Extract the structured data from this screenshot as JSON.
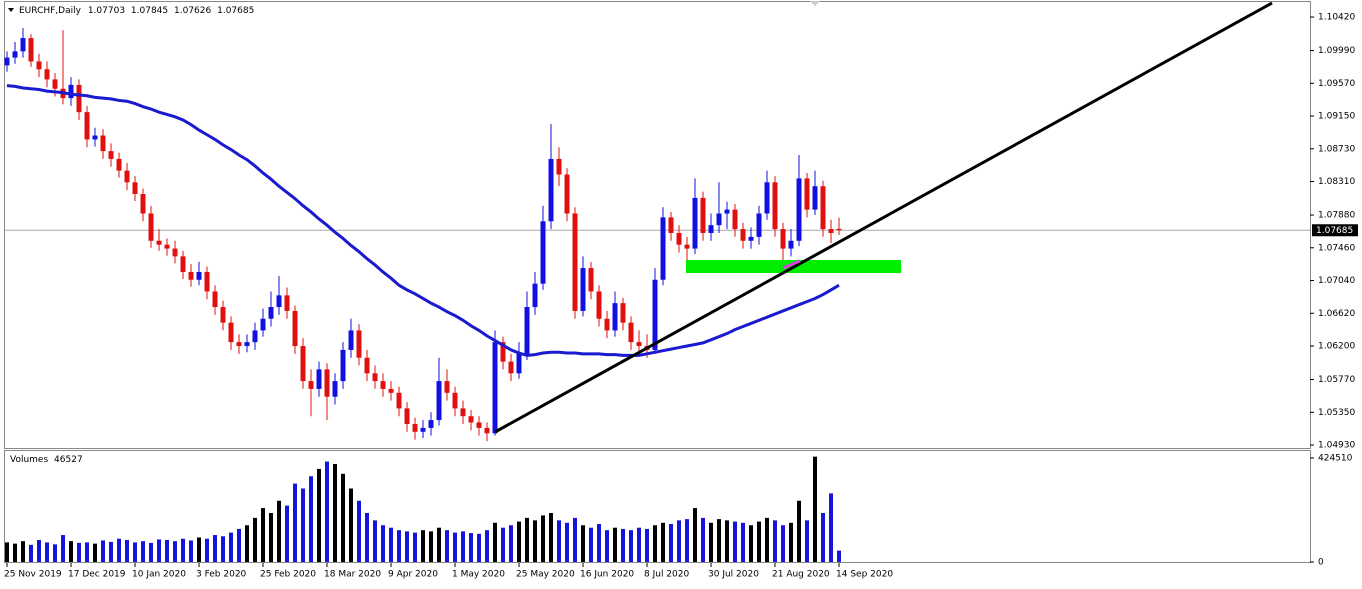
{
  "chart_data": {
    "type": "candlestick",
    "title": "EURCHF,Daily",
    "categories": [
      "25 Nov 2019",
      null,
      null,
      null,
      null,
      null,
      null,
      null,
      "17 Dec 2019",
      null,
      null,
      null,
      null,
      null,
      null,
      null,
      "10 Jan 2020",
      null,
      null,
      null,
      null,
      null,
      null,
      null,
      "3 Feb 2020",
      null,
      null,
      null,
      null,
      null,
      null,
      null,
      "25 Feb 2020",
      null,
      null,
      null,
      null,
      null,
      null,
      null,
      "18 Mar 2020",
      null,
      null,
      null,
      null,
      null,
      null,
      null,
      "9 Apr 2020",
      null,
      null,
      null,
      null,
      null,
      null,
      null,
      "1 May 2020",
      null,
      null,
      null,
      null,
      null,
      null,
      null,
      "25 May 2020",
      null,
      null,
      null,
      null,
      null,
      null,
      null,
      "16 Jun 2020",
      null,
      null,
      null,
      null,
      null,
      null,
      null,
      "8 Jul 2020",
      null,
      null,
      null,
      null,
      null,
      null,
      null,
      "30 Jul 2020",
      null,
      null,
      null,
      null,
      null,
      null,
      null,
      "21 Aug 2020",
      null,
      null,
      null,
      null,
      null,
      null,
      null,
      "14 Sep 2020"
    ],
    "open": [
      1.098,
      1.099,
      1.0998,
      1.1015,
      1.0985,
      1.0975,
      1.0962,
      1.095,
      1.0938,
      1.0955,
      1.092,
      1.0885,
      1.089,
      1.087,
      1.086,
      1.0845,
      1.083,
      1.0815,
      1.079,
      1.0755,
      1.075,
      1.0745,
      1.0735,
      1.0715,
      1.0705,
      1.0715,
      1.069,
      1.067,
      1.065,
      1.0625,
      1.062,
      1.0625,
      1.064,
      1.0655,
      1.067,
      1.0685,
      1.0665,
      1.062,
      1.0575,
      1.0565,
      1.059,
      1.0555,
      1.0575,
      1.0615,
      1.064,
      1.0605,
      1.0585,
      1.0575,
      1.0565,
      1.056,
      1.054,
      1.052,
      1.051,
      1.0515,
      1.0525,
      1.0575,
      1.056,
      1.054,
      1.053,
      1.0522,
      1.0515,
      1.0508,
      1.0625,
      1.06,
      1.0585,
      1.061,
      1.067,
      1.07,
      1.078,
      1.086,
      1.084,
      1.079,
      1.0665,
      1.072,
      1.069,
      1.0655,
      1.064,
      1.0675,
      1.065,
      1.0625,
      1.062,
      1.0615,
      1.0705,
      1.0785,
      1.0765,
      1.075,
      1.0745,
      1.081,
      1.0765,
      1.0775,
      1.079,
      1.0795,
      1.077,
      1.0755,
      1.076,
      1.079,
      1.083,
      1.077,
      1.0745,
      1.0755,
      1.0835,
      1.0795,
      1.0825,
      1.077,
      1.07703
    ],
    "high": [
      1.0998,
      1.101,
      1.1028,
      1.102,
      1.0995,
      1.0985,
      1.097,
      1.1025,
      1.0965,
      1.0962,
      1.0928,
      1.09,
      1.0898,
      1.088,
      1.0868,
      1.0855,
      1.0838,
      1.0822,
      1.08,
      1.077,
      1.0758,
      1.0755,
      1.0742,
      1.0725,
      1.0728,
      1.0722,
      1.0698,
      1.0678,
      1.0658,
      1.0635,
      1.0635,
      1.065,
      1.0668,
      1.069,
      1.071,
      1.0695,
      1.0672,
      1.063,
      1.059,
      1.06,
      1.0598,
      1.0585,
      1.0625,
      1.0655,
      1.0648,
      1.0615,
      1.0595,
      1.0585,
      1.0575,
      1.0568,
      1.0548,
      1.0528,
      1.0525,
      1.0535,
      1.0605,
      1.059,
      1.0568,
      1.055,
      1.0538,
      1.053,
      1.0522,
      1.064,
      1.0632,
      1.061,
      1.0625,
      1.069,
      1.0715,
      1.08,
      1.0905,
      1.0875,
      1.0848,
      1.0798,
      1.0735,
      1.0728,
      1.0698,
      1.0665,
      1.069,
      1.0682,
      1.0658,
      1.064,
      1.0635,
      1.072,
      1.0798,
      1.0792,
      1.0775,
      1.076,
      1.0835,
      1.0818,
      1.079,
      1.083,
      1.0805,
      1.0802,
      1.0778,
      1.0772,
      1.08,
      1.0845,
      1.0838,
      1.0778,
      1.077,
      1.0865,
      1.0842,
      1.0845,
      1.0832,
      1.0782,
      1.07845
    ],
    "low": [
      1.0972,
      1.0982,
      1.099,
      1.0978,
      1.0965,
      1.0952,
      1.094,
      1.093,
      1.0928,
      1.091,
      1.0875,
      1.0876,
      1.086,
      1.085,
      1.0836,
      1.082,
      1.0806,
      1.078,
      1.0746,
      1.0742,
      1.0736,
      1.0726,
      1.0706,
      1.0696,
      1.0698,
      1.068,
      1.066,
      1.064,
      1.0615,
      1.061,
      1.0612,
      1.0615,
      1.0632,
      1.0645,
      1.066,
      1.0655,
      1.061,
      1.0565,
      1.053,
      1.0555,
      1.0525,
      1.0545,
      1.0565,
      1.0605,
      1.0595,
      1.0575,
      1.0565,
      1.0555,
      1.055,
      1.053,
      1.051,
      1.05,
      1.0502,
      1.0505,
      1.0518,
      1.055,
      1.053,
      1.052,
      1.0512,
      1.0505,
      1.0498,
      1.0505,
      1.059,
      1.0575,
      1.0578,
      1.0602,
      1.066,
      1.0692,
      1.077,
      1.0825,
      1.078,
      1.0655,
      1.0658,
      1.068,
      1.0645,
      1.063,
      1.0632,
      1.064,
      1.0615,
      1.061,
      1.0605,
      1.061,
      1.0698,
      1.0755,
      1.074,
      1.0725,
      1.0738,
      1.0755,
      1.0755,
      1.0765,
      1.077,
      1.076,
      1.0745,
      1.0745,
      1.075,
      1.0782,
      1.076,
      1.073,
      1.0735,
      1.0748,
      1.0785,
      1.0788,
      1.076,
      1.0752,
      1.07626
    ],
    "close": [
      1.099,
      1.0998,
      1.1015,
      1.0985,
      1.0975,
      1.0962,
      1.095,
      1.0938,
      1.0955,
      1.092,
      1.0885,
      1.089,
      1.087,
      1.086,
      1.0845,
      1.083,
      1.0815,
      1.079,
      1.0755,
      1.075,
      1.0745,
      1.0735,
      1.0715,
      1.0705,
      1.0715,
      1.069,
      1.067,
      1.065,
      1.0625,
      1.062,
      1.0625,
      1.064,
      1.0655,
      1.067,
      1.0685,
      1.0665,
      1.062,
      1.0575,
      1.0565,
      1.059,
      1.0555,
      1.0575,
      1.0615,
      1.064,
      1.0605,
      1.0585,
      1.0575,
      1.0565,
      1.056,
      1.054,
      1.052,
      1.051,
      1.0515,
      1.0525,
      1.0575,
      1.056,
      1.054,
      1.053,
      1.0522,
      1.0515,
      1.0508,
      1.0625,
      1.06,
      1.0585,
      1.061,
      1.067,
      1.07,
      1.078,
      1.086,
      1.084,
      1.079,
      1.0665,
      1.072,
      1.069,
      1.0655,
      1.064,
      1.0675,
      1.065,
      1.0625,
      1.062,
      1.0615,
      1.0705,
      1.0785,
      1.0765,
      1.075,
      1.0745,
      1.081,
      1.0765,
      1.0775,
      1.079,
      1.0795,
      1.077,
      1.0755,
      1.076,
      1.079,
      1.083,
      1.077,
      1.0745,
      1.0755,
      1.0835,
      1.0795,
      1.0825,
      1.077,
      1.0765,
      1.07685
    ],
    "up_color": "#1010e0",
    "down_color": "#e01010",
    "ylim": [
      1.04892,
      1.106
    ],
    "yticks": [
      {
        "value": 1.1042,
        "label": "1.10420"
      },
      {
        "value": 1.0999,
        "label": "1.09990"
      },
      {
        "value": 1.0957,
        "label": "1.09570"
      },
      {
        "value": 1.0915,
        "label": "1.09150"
      },
      {
        "value": 1.0873,
        "label": "1.08730"
      },
      {
        "value": 1.0831,
        "label": "1.08310"
      },
      {
        "value": 1.0788,
        "label": "1.07880"
      },
      {
        "value": 1.0746,
        "label": "1.07460"
      },
      {
        "value": 1.0704,
        "label": "1.07040"
      },
      {
        "value": 1.0662,
        "label": "1.06620"
      },
      {
        "value": 1.062,
        "label": "1.06200"
      },
      {
        "value": 1.0577,
        "label": "1.05770"
      },
      {
        "value": 1.0535,
        "label": "1.05350"
      },
      {
        "value": 1.0493,
        "label": "1.04930"
      }
    ],
    "ma": {
      "color": "#1a1ad0",
      "values": [
        1.0954,
        1.0953,
        1.0951,
        1.095,
        1.0949,
        1.0947,
        1.0946,
        1.0945,
        1.0943,
        1.0942,
        1.0941,
        1.0939,
        1.0938,
        1.0937,
        1.0935,
        1.0934,
        1.0931,
        1.0927,
        1.0924,
        1.092,
        1.0917,
        1.0914,
        1.091,
        1.0904,
        1.0897,
        1.0891,
        1.0885,
        1.0878,
        1.0872,
        1.0865,
        1.0859,
        1.0851,
        1.0842,
        1.0834,
        1.0825,
        1.0817,
        1.0809,
        1.08,
        1.0792,
        1.0783,
        1.0775,
        1.0766,
        1.0758,
        1.0749,
        1.0741,
        1.0732,
        1.0724,
        1.0715,
        1.0707,
        1.0698,
        1.0692,
        1.0687,
        1.0681,
        1.0675,
        1.067,
        1.0664,
        1.0659,
        1.0653,
        1.0646,
        1.064,
        1.0633,
        1.0627,
        1.0621,
        1.0615,
        1.0611,
        1.0608,
        1.0609,
        1.0611,
        1.0612,
        1.0612,
        1.0611,
        1.0611,
        1.061,
        1.061,
        1.061,
        1.0609,
        1.0609,
        1.0608,
        1.0608,
        1.0608,
        1.061,
        1.0612,
        1.0614,
        1.0616,
        1.0618,
        1.062,
        1.0622,
        1.0624,
        1.0628,
        1.0632,
        1.0636,
        1.0641,
        1.0645,
        1.0649,
        1.0653,
        1.0657,
        1.0661,
        1.0665,
        1.0669,
        1.0673,
        1.0677,
        1.0681,
        1.0686,
        1.0692,
        1.0698
      ]
    },
    "volume": {
      "title": "Volumes",
      "values": [
        80000,
        75000,
        85000,
        70000,
        90000,
        80000,
        72000,
        110000,
        85000,
        78000,
        80000,
        75000,
        88000,
        82000,
        95000,
        90000,
        80000,
        85000,
        78000,
        92000,
        90000,
        85000,
        95000,
        88000,
        100000,
        95000,
        110000,
        105000,
        120000,
        135000,
        150000,
        180000,
        220000,
        200000,
        250000,
        230000,
        320000,
        300000,
        350000,
        380000,
        410000,
        400000,
        360000,
        300000,
        250000,
        200000,
        170000,
        150000,
        140000,
        130000,
        125000,
        120000,
        130000,
        125000,
        140000,
        130000,
        120000,
        125000,
        118000,
        115000,
        130000,
        160000,
        140000,
        150000,
        165000,
        180000,
        170000,
        190000,
        200000,
        170000,
        160000,
        180000,
        150000,
        140000,
        155000,
        130000,
        140000,
        135000,
        130000,
        140000,
        135000,
        150000,
        160000,
        155000,
        170000,
        175000,
        220000,
        180000,
        160000,
        175000,
        170000,
        165000,
        160000,
        150000,
        165000,
        180000,
        170000,
        150000,
        160000,
        250000,
        170000,
        430000,
        200000,
        280000,
        46527
      ],
      "ylim": [
        0,
        449000
      ],
      "yticks": [
        424510,
        0
      ],
      "up_color": "#000000",
      "down_color": "#1515d9"
    }
  }
}
